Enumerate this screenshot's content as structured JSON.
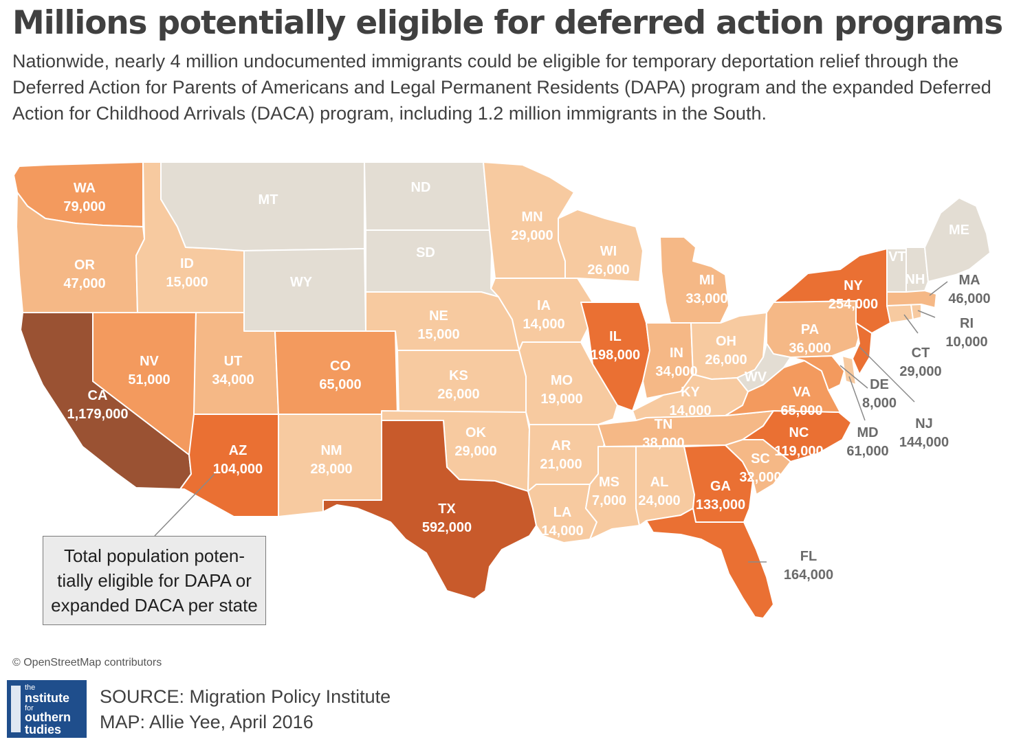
{
  "title": "Millions potentially eligible for deferred action programs",
  "subtitle": "Nationwide, nearly 4 million undocumented immigrants could be eligible for temporary deportation relief through the Deferred Action for Parents of Americans and Legal Permanent Residents (DAPA) program and the expanded Deferred Action for Childhood Arrivals (DACA) program, including 1.2 million immigrants in the South.",
  "callout": "Total population potentially eligible for DAPA or expanded DACA per state",
  "callout_lines": [
    "Total population poten-",
    "tially eligible for DAPA or",
    "expanded DACA per state"
  ],
  "attribution": "© OpenStreetMap contributors",
  "logo": {
    "line1": "the",
    "line2": "nstitute",
    "line3": "for",
    "line4": "outhern",
    "line5": "tudies"
  },
  "source": "SOURCE: Migration Policy Institute",
  "credit": "MAP: Allie Yee, April 2016",
  "colors": {
    "no_data": "#e3ddd3",
    "lightest": "#f7caa0",
    "light": "#f5b886",
    "mid": "#f39a5e",
    "dark": "#ea7033",
    "darker": "#c85a2b",
    "darkest": "#9a5233",
    "label_light": "#ffffff",
    "label_dark": "#6a6a6a"
  },
  "states": [
    {
      "code": "WA",
      "value": "79,000"
    },
    {
      "code": "OR",
      "value": "47,000"
    },
    {
      "code": "CA",
      "value": "1,179,000"
    },
    {
      "code": "ID",
      "value": "15,000"
    },
    {
      "code": "NV",
      "value": "51,000"
    },
    {
      "code": "MT",
      "value": ""
    },
    {
      "code": "WY",
      "value": ""
    },
    {
      "code": "UT",
      "value": "34,000"
    },
    {
      "code": "AZ",
      "value": "104,000"
    },
    {
      "code": "CO",
      "value": "65,000"
    },
    {
      "code": "NM",
      "value": "28,000"
    },
    {
      "code": "ND",
      "value": ""
    },
    {
      "code": "SD",
      "value": ""
    },
    {
      "code": "NE",
      "value": "15,000"
    },
    {
      "code": "KS",
      "value": "26,000"
    },
    {
      "code": "OK",
      "value": "29,000"
    },
    {
      "code": "TX",
      "value": "592,000"
    },
    {
      "code": "MN",
      "value": "29,000"
    },
    {
      "code": "IA",
      "value": "14,000"
    },
    {
      "code": "MO",
      "value": "19,000"
    },
    {
      "code": "AR",
      "value": "21,000"
    },
    {
      "code": "LA",
      "value": "14,000"
    },
    {
      "code": "WI",
      "value": "26,000"
    },
    {
      "code": "IL",
      "value": "198,000"
    },
    {
      "code": "MI",
      "value": "33,000"
    },
    {
      "code": "IN",
      "value": "34,000"
    },
    {
      "code": "OH",
      "value": "26,000"
    },
    {
      "code": "KY",
      "value": "14,000"
    },
    {
      "code": "TN",
      "value": "38,000"
    },
    {
      "code": "MS",
      "value": "7,000"
    },
    {
      "code": "AL",
      "value": "24,000"
    },
    {
      "code": "GA",
      "value": "133,000"
    },
    {
      "code": "FL",
      "value": "164,000"
    },
    {
      "code": "SC",
      "value": "32,000"
    },
    {
      "code": "NC",
      "value": "119,000"
    },
    {
      "code": "VA",
      "value": "65,000"
    },
    {
      "code": "WV",
      "value": ""
    },
    {
      "code": "MD",
      "value": "61,000"
    },
    {
      "code": "DE",
      "value": "8,000"
    },
    {
      "code": "PA",
      "value": "36,000"
    },
    {
      "code": "NJ",
      "value": "144,000"
    },
    {
      "code": "NY",
      "value": "254,000"
    },
    {
      "code": "CT",
      "value": "29,000"
    },
    {
      "code": "RI",
      "value": "10,000"
    },
    {
      "code": "MA",
      "value": "46,000"
    },
    {
      "code": "VT",
      "value": ""
    },
    {
      "code": "NH",
      "value": ""
    },
    {
      "code": "ME",
      "value": ""
    }
  ]
}
